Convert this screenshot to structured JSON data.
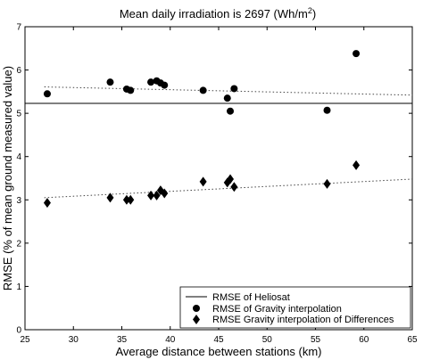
{
  "chart_data": {
    "type": "scatter",
    "title": "Mean daily irradiation is 2697 (Wh/m",
    "title_sup": "2",
    "title_end": ")",
    "xlabel": "Average distance between stations (km)",
    "ylabel": "RMSE (% of mean ground measured value)",
    "xlim": [
      25,
      65
    ],
    "ylim": [
      0,
      7
    ],
    "xticks": [
      25,
      30,
      35,
      40,
      45,
      50,
      55,
      60,
      65
    ],
    "yticks": [
      0,
      1,
      2,
      3,
      4,
      5,
      6,
      7
    ],
    "grid": false,
    "legend_position": "bottom-right",
    "heliosat_rmse": 5.23,
    "series": [
      {
        "name": "RMSE of Gravity interpolation",
        "marker": "circle",
        "color": "#000000",
        "x": [
          27.3,
          33.8,
          35.5,
          35.9,
          38.0,
          38.6,
          39.0,
          39.4,
          43.4,
          45.9,
          46.2,
          46.6,
          56.2,
          59.2
        ],
        "y": [
          5.45,
          5.72,
          5.56,
          5.53,
          5.72,
          5.75,
          5.7,
          5.65,
          5.53,
          5.35,
          5.05,
          5.57,
          5.07,
          6.38
        ]
      },
      {
        "name": "RMSE Gravity interpolation of Differences",
        "marker": "diamond",
        "color": "#000000",
        "x": [
          27.3,
          33.8,
          35.5,
          35.9,
          38.0,
          38.6,
          39.0,
          39.4,
          43.4,
          45.9,
          46.2,
          46.6,
          56.2,
          59.2
        ],
        "y": [
          2.93,
          3.05,
          3.0,
          3.0,
          3.1,
          3.1,
          3.22,
          3.15,
          3.42,
          3.4,
          3.48,
          3.3,
          3.37,
          3.8
        ]
      }
    ],
    "trendlines": [
      {
        "style": "dotted",
        "x": [
          27.0,
          65.0
        ],
        "y": [
          5.61,
          5.42
        ]
      },
      {
        "style": "dotted",
        "x": [
          27.0,
          65.0
        ],
        "y": [
          3.05,
          3.48
        ]
      }
    ],
    "legend": [
      {
        "label": "RMSE of Heliosat",
        "symbol": "line"
      },
      {
        "label": "RMSE of Gravity interpolation",
        "symbol": "circle"
      },
      {
        "label": "RMSE Gravity interpolation of Differences",
        "symbol": "diamond"
      }
    ]
  }
}
